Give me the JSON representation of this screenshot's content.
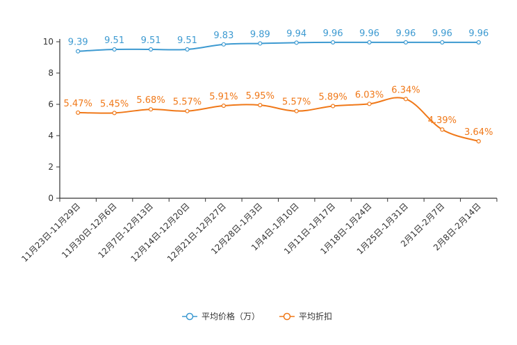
{
  "chart_data": {
    "type": "line",
    "categories": [
      "11月23日-11月29日",
      "11月30日-12月6日",
      "12月7日-12月13日",
      "12月14日-12月20日",
      "12月21日-12月27日",
      "12月28日-1月3日",
      "1月4日-1月10日",
      "1月11日-1月17日",
      "1月18日-1月24日",
      "1月25日-1月31日",
      "2月1日-2月7日",
      "2月8日-2月14日"
    ],
    "ylim": [
      0,
      10
    ],
    "yticks": [
      0,
      2,
      4,
      6,
      8,
      10
    ],
    "series": [
      {
        "name": "平均价格（万）",
        "color": "#3d9ad1",
        "values": [
          9.39,
          9.51,
          9.51,
          9.51,
          9.83,
          9.89,
          9.94,
          9.96,
          9.96,
          9.96,
          9.96,
          9.96
        ],
        "labels": [
          "9.39",
          "9.51",
          "9.51",
          "9.51",
          "9.83",
          "9.89",
          "9.94",
          "9.96",
          "9.96",
          "9.96",
          "9.96",
          "9.96"
        ]
      },
      {
        "name": "平均折扣",
        "color": "#f07818",
        "values": [
          5.47,
          5.45,
          5.68,
          5.57,
          5.91,
          5.95,
          5.57,
          5.89,
          6.03,
          6.34,
          4.39,
          3.64
        ],
        "labels": [
          "5.47%",
          "5.45%",
          "5.68%",
          "5.57%",
          "5.91%",
          "5.95%",
          "5.57%",
          "5.89%",
          "6.03%",
          "6.34%",
          "4.39%",
          "3.64%"
        ]
      }
    ],
    "xlabel": "",
    "ylabel": "",
    "legend_position": "bottom-center"
  }
}
